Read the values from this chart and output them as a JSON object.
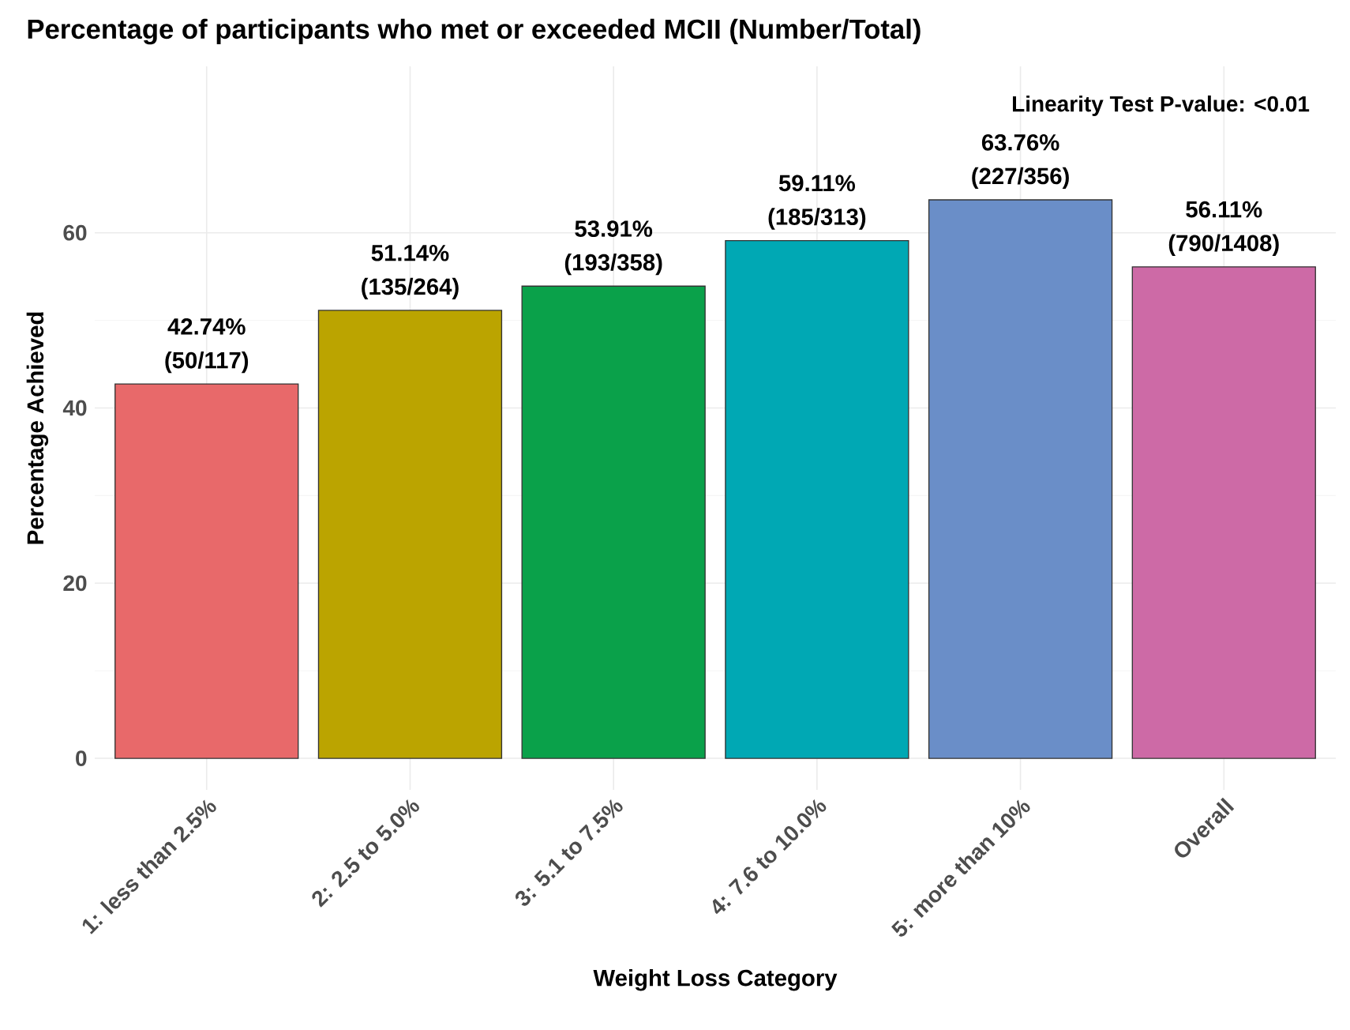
{
  "chart_data": {
    "type": "bar",
    "title": "Percentage of participants who met or exceeded MCII (Number/Total)",
    "xlabel": "Weight Loss Category",
    "ylabel": "Percentage Achieved",
    "categories": [
      "1: less than 2.5%",
      "2: 2.5 to 5.0%",
      "3: 5.1 to 7.5%",
      "4: 7.6 to 10.0%",
      "5: more than 10%",
      "Overall"
    ],
    "values": [
      42.74,
      51.14,
      53.91,
      59.11,
      63.76,
      56.11
    ],
    "colors": [
      "#e8696a",
      "#bba400",
      "#0aa14a",
      "#00a8b4",
      "#6a8ec8",
      "#cd6aa6"
    ],
    "value_labels": [
      "42.74% (50/117)",
      "51.14% (135/264)",
      "53.91% (193/358)",
      "59.11% (185/313)",
      "63.76% (227/356)",
      "56.11% (790/1408)"
    ],
    "ylim": [
      -3.6,
      79
    ],
    "yticks": [
      0,
      20,
      40,
      60
    ],
    "grid": true,
    "annotations": [
      "Linearity Test P-value: <0.01"
    ]
  }
}
